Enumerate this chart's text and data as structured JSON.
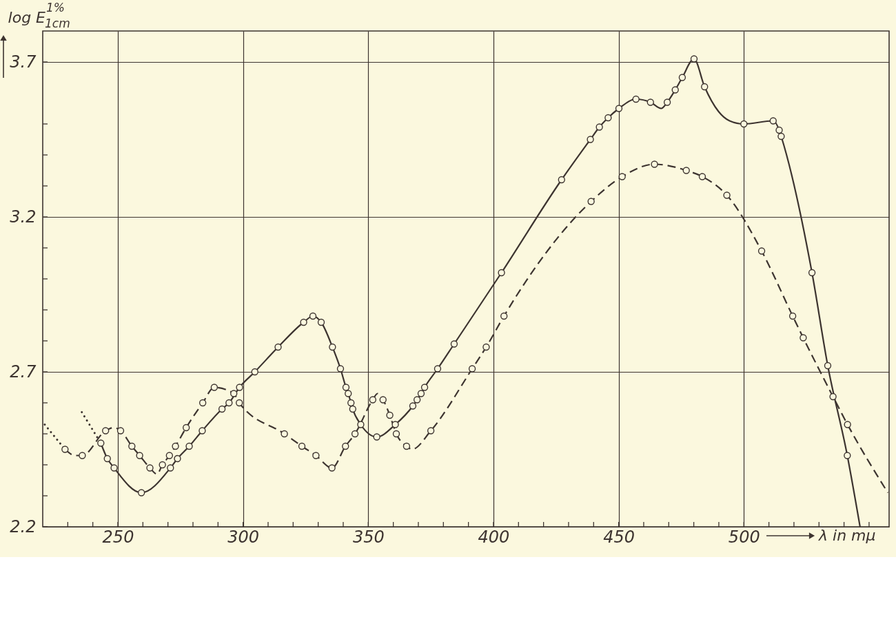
{
  "chart_data": {
    "type": "line",
    "xlabel": "λ in mμ",
    "ylabel": "log E$^{1%}$$_{1cm}$",
    "xlim": [
      220,
      558
    ],
    "ylim": [
      2.2,
      3.8
    ],
    "xticks": [
      {
        "value": 230,
        "label": null
      },
      {
        "value": 240,
        "label": null
      },
      250,
      {
        "value": 260,
        "label": null
      },
      {
        "value": 270,
        "label": null
      },
      {
        "value": 280,
        "label": null
      },
      {
        "value": 290,
        "label": null
      },
      300,
      {
        "value": 310,
        "label": null
      },
      {
        "value": 320,
        "label": null
      },
      {
        "value": 330,
        "label": null
      },
      {
        "value": 340,
        "label": null
      },
      350,
      {
        "value": 360,
        "label": null
      },
      {
        "value": 370,
        "label": null
      },
      {
        "value": 380,
        "label": null
      },
      {
        "value": 390,
        "label": null
      },
      400,
      {
        "value": 410,
        "label": null
      },
      {
        "value": 420,
        "label": null
      },
      {
        "value": 430,
        "label": null
      },
      {
        "value": 440,
        "label": null
      },
      450,
      {
        "value": 460,
        "label": null
      },
      {
        "value": 470,
        "label": null
      },
      {
        "value": 480,
        "label": null
      },
      {
        "value": 490,
        "label": null
      },
      500,
      {
        "value": 510,
        "label": null
      },
      {
        "value": 520,
        "label": null
      },
      {
        "value": 530,
        "label": null
      },
      {
        "value": 540,
        "label": null
      },
      {
        "value": 550,
        "label": null
      }
    ],
    "yticks": [
      2.2,
      {
        "value": 2.3,
        "label": null
      },
      {
        "value": 2.4,
        "label": null
      },
      {
        "value": 2.5,
        "label": null
      },
      {
        "value": 2.6,
        "label": null
      },
      2.7,
      {
        "value": 2.8,
        "label": null
      },
      {
        "value": 2.9,
        "label": null
      },
      {
        "value": 3.0,
        "label": null
      },
      {
        "value": 3.1,
        "label": null
      },
      3.2,
      {
        "value": 3.3,
        "label": null
      },
      {
        "value": 3.4,
        "label": null
      },
      {
        "value": 3.5,
        "label": null
      },
      3.7
    ],
    "grid": true,
    "series": [
      {
        "color": "#3d3430",
        "line_style": "solid",
        "x": [
          243.2,
          245.8,
          248.5,
          259.4,
          271.0,
          273.8,
          278.5,
          283.7,
          291.6,
          294.4,
          298.6,
          304.7,
          314.0,
          324.2,
          327.9,
          331.2,
          335.7,
          338.9,
          341.1,
          342.0,
          343.1,
          343.8,
          347.0,
          353.4,
          360.8,
          367.8,
          369.5,
          371.1,
          372.5,
          377.7,
          384.3,
          403.2,
          427.2,
          438.7,
          442.3,
          445.8,
          450.1,
          456.9,
          462.7,
          467.0,
          469.4,
          472.6,
          475.4,
          480.1,
          484.3,
          489.9,
          494.3,
          500.0,
          511.7,
          514.1,
          514.9,
          527.2,
          533.5,
          541.3,
          546.4
        ],
        "values": [
          2.47,
          2.42,
          2.39,
          2.31,
          2.39,
          2.42,
          2.46,
          2.51,
          2.58,
          2.6,
          2.65,
          2.7,
          2.78,
          2.86,
          2.88,
          2.86,
          2.78,
          2.71,
          2.65,
          2.63,
          2.6,
          2.58,
          2.53,
          2.49,
          2.53,
          2.59,
          2.61,
          2.63,
          2.65,
          2.71,
          2.79,
          3.02,
          3.32,
          3.45,
          3.49,
          3.52,
          3.55,
          3.58,
          3.57,
          3.55,
          3.57,
          3.61,
          3.65,
          3.71,
          3.62,
          3.54,
          3.51,
          3.5,
          3.51,
          3.48,
          3.46,
          3.02,
          2.72,
          2.43,
          2.2
        ]
      },
      {
        "color": "#3d3430",
        "line_style": "dashed",
        "x": [
          228.9,
          233.0,
          235.8,
          245.1,
          248.4,
          251.1,
          255.6,
          258.7,
          262.8,
          265.6,
          267.8,
          270.6,
          273.0,
          277.3,
          283.9,
          288.5,
          296.3,
          298.5,
          316.5,
          323.5,
          329.1,
          335.5,
          340.9,
          344.7,
          351.8,
          353.7,
          355.9,
          358.6,
          361.2,
          365.3,
          367.5,
          375.0,
          391.5,
          397.1,
          404.2,
          439.0,
          451.4,
          464.3,
          477.0,
          483.4,
          493.2,
          507.1,
          519.5,
          523.7,
          535.6,
          541.4,
          557.5
        ],
        "values": [
          2.45,
          2.43,
          2.43,
          2.51,
          2.52,
          2.51,
          2.46,
          2.43,
          2.39,
          2.37,
          2.4,
          2.43,
          2.46,
          2.52,
          2.6,
          2.65,
          2.63,
          2.6,
          2.5,
          2.46,
          2.43,
          2.39,
          2.46,
          2.5,
          2.61,
          2.63,
          2.61,
          2.56,
          2.5,
          2.46,
          2.45,
          2.51,
          2.71,
          2.78,
          2.88,
          3.25,
          3.33,
          3.37,
          3.35,
          3.33,
          3.27,
          3.09,
          2.88,
          2.81,
          2.62,
          2.53,
          2.31
        ]
      },
      {
        "color": "#3d3430",
        "line_style": "dotted",
        "x": [
          220.8,
          228.9
        ],
        "values": [
          2.53,
          2.45
        ]
      },
      {
        "color": "#3d3430",
        "line_style": "dotted",
        "x": [
          235.6,
          243.2
        ],
        "values": [
          2.57,
          2.47
        ]
      },
      {
        "type": "scatter",
        "color": "#3d3430",
        "marker": "circle",
        "x": [
          243.2,
          245.8,
          248.5,
          259.4,
          271.0,
          273.8,
          278.5,
          283.7,
          291.6,
          294.4,
          298.6,
          304.7,
          314.0,
          324.2,
          327.9,
          331.2,
          335.7,
          338.9,
          341.1,
          342.0,
          343.1,
          343.8,
          347.0,
          353.4,
          360.8,
          367.8,
          369.5,
          371.1,
          372.5,
          377.7,
          384.3,
          403.2,
          427.2,
          438.7,
          442.3,
          445.8,
          450.1,
          456.9,
          462.7,
          469.4,
          472.6,
          475.4,
          480.1,
          484.3,
          500.0,
          511.7,
          514.1,
          514.9,
          527.2,
          533.5,
          541.3
        ],
        "values": [
          2.47,
          2.42,
          2.39,
          2.31,
          2.39,
          2.42,
          2.46,
          2.51,
          2.58,
          2.6,
          2.65,
          2.7,
          2.78,
          2.86,
          2.88,
          2.86,
          2.78,
          2.71,
          2.65,
          2.63,
          2.6,
          2.58,
          2.53,
          2.49,
          2.53,
          2.59,
          2.61,
          2.63,
          2.65,
          2.71,
          2.79,
          3.02,
          3.32,
          3.45,
          3.49,
          3.52,
          3.55,
          3.58,
          3.57,
          3.57,
          3.61,
          3.65,
          3.71,
          3.62,
          3.5,
          3.51,
          3.48,
          3.46,
          3.02,
          2.72,
          2.43
        ]
      },
      {
        "type": "scatter",
        "color": "#3d3430",
        "marker": "circle",
        "x": [
          228.9,
          235.8,
          245.1,
          251.1,
          255.6,
          258.7,
          262.8,
          267.8,
          270.6,
          273.0,
          277.3,
          283.9,
          288.5,
          296.3,
          298.5,
          316.5,
          323.5,
          329.1,
          335.5,
          340.9,
          344.7,
          351.8,
          355.9,
          358.6,
          361.2,
          365.3,
          375.0,
          391.5,
          397.1,
          404.2,
          439.0,
          451.4,
          464.3,
          477.0,
          483.4,
          493.2,
          507.1,
          519.5,
          523.7,
          535.6,
          541.4
        ],
        "values": [
          2.45,
          2.43,
          2.51,
          2.51,
          2.46,
          2.43,
          2.39,
          2.4,
          2.43,
          2.46,
          2.52,
          2.6,
          2.65,
          2.63,
          2.6,
          2.5,
          2.46,
          2.43,
          2.39,
          2.46,
          2.5,
          2.61,
          2.61,
          2.56,
          2.5,
          2.46,
          2.51,
          2.71,
          2.78,
          2.88,
          3.25,
          3.33,
          3.37,
          3.35,
          3.33,
          3.27,
          3.09,
          2.88,
          2.81,
          2.62,
          2.53
        ]
      }
    ]
  }
}
